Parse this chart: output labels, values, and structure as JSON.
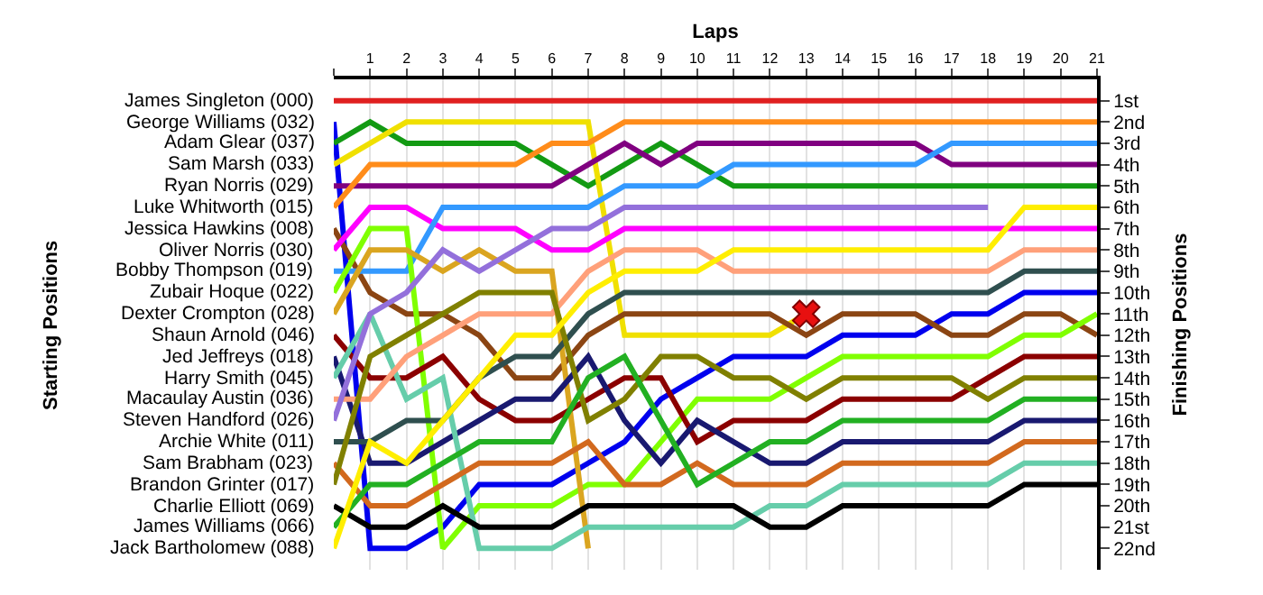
{
  "chart_data": {
    "type": "line",
    "xlabel": "Laps",
    "annotations": [
      "Starting Positions"
    ],
    "y2label": "Finishing Positions",
    "x": [
      0,
      1,
      2,
      3,
      4,
      5,
      6,
      7,
      8,
      9,
      10,
      11,
      12,
      13,
      14,
      15,
      16,
      17,
      18,
      19,
      20,
      21
    ],
    "xlim": [
      0,
      21
    ],
    "xticks": [
      {
        "value": 0,
        "label": null
      },
      1,
      2,
      3,
      4,
      5,
      6,
      7,
      8,
      9,
      10,
      11,
      12,
      13,
      14,
      15,
      16,
      17,
      18,
      19,
      20,
      21
    ],
    "y2lim": [
      23,
      0
    ],
    "y2ticks": [
      {
        "value": 1,
        "label": "1st"
      },
      {
        "value": 2,
        "label": "2nd"
      },
      {
        "value": 3,
        "label": "3rd"
      },
      {
        "value": 4,
        "label": "4th"
      },
      {
        "value": 5,
        "label": "5th"
      },
      {
        "value": 6,
        "label": "6th"
      },
      {
        "value": 7,
        "label": "7th"
      },
      {
        "value": 8,
        "label": "8th"
      },
      {
        "value": 9,
        "label": "9th"
      },
      {
        "value": 10,
        "label": "10th"
      },
      {
        "value": 11,
        "label": "11th"
      },
      {
        "value": 12,
        "label": "12th"
      },
      {
        "value": 13,
        "label": "13th"
      },
      {
        "value": 14,
        "label": "14th"
      },
      {
        "value": 15,
        "label": "15th"
      },
      {
        "value": 16,
        "label": "16th"
      },
      {
        "value": 17,
        "label": "17th"
      },
      {
        "value": 18,
        "label": "18th"
      },
      {
        "value": 19,
        "label": "19th"
      },
      {
        "value": 20,
        "label": "20th"
      },
      {
        "value": 21,
        "label": "21st"
      },
      {
        "value": 22,
        "label": "22nd"
      }
    ],
    "grid": true,
    "legend": false,
    "marker": "none",
    "line_style": "solid",
    "series": [
      {
        "name": "James Singleton (000)",
        "axis": "y2",
        "color": "#e02020",
        "values": [
          1,
          1,
          1,
          1,
          1,
          1,
          1,
          1,
          1,
          1,
          1,
          1,
          1,
          1,
          1,
          1,
          1,
          1,
          1,
          1,
          1,
          1
        ]
      },
      {
        "name": "George Williams (032)",
        "axis": "y2",
        "color": "#0000ee",
        "values": [
          2,
          22,
          22,
          21,
          19,
          19,
          19,
          18,
          17,
          15,
          14,
          13,
          13,
          13,
          12,
          12,
          12,
          11,
          11,
          10,
          10,
          10
        ]
      },
      {
        "name": "Adam Glear (037)",
        "axis": "y2",
        "color": "#139a13",
        "values": [
          3,
          2,
          3,
          3,
          3,
          3,
          4,
          5,
          4,
          3,
          4,
          5,
          5,
          5,
          5,
          5,
          5,
          5,
          5,
          5,
          5,
          5
        ]
      },
      {
        "name": "Sam Marsh (033)",
        "axis": "y2",
        "color": "#f0e000",
        "values": [
          4,
          3,
          2,
          2,
          2,
          2,
          2,
          2,
          12,
          12,
          12,
          12,
          12,
          11,
          null,
          null,
          null,
          null,
          null,
          null,
          null,
          null
        ]
      },
      {
        "name": "Ryan Norris (029)",
        "axis": "y2",
        "color": "#800080",
        "values": [
          5,
          5,
          5,
          5,
          5,
          5,
          5,
          4,
          3,
          4,
          3,
          3,
          3,
          3,
          3,
          3,
          3,
          4,
          4,
          4,
          4,
          4
        ]
      },
      {
        "name": "Luke Whitworth (015)",
        "axis": "y2",
        "color": "#ff8c1a",
        "values": [
          6,
          4,
          4,
          4,
          4,
          4,
          3,
          3,
          2,
          2,
          2,
          2,
          2,
          2,
          2,
          2,
          2,
          2,
          2,
          2,
          2,
          2
        ]
      },
      {
        "name": "Jessica Hawkins (008)",
        "axis": "y2",
        "color": "#8b4513",
        "values": [
          7,
          10,
          11,
          11,
          12,
          14,
          14,
          12,
          11,
          11,
          11,
          11,
          11,
          12,
          11,
          11,
          11,
          12,
          12,
          11,
          11,
          12
        ]
      },
      {
        "name": "Oliver Norris (030)",
        "axis": "y2",
        "color": "#ff00ff",
        "values": [
          8,
          6,
          6,
          7,
          7,
          7,
          8,
          8,
          7,
          7,
          7,
          7,
          7,
          7,
          7,
          7,
          7,
          7,
          7,
          7,
          7,
          7
        ]
      },
      {
        "name": "Bobby Thompson (019)",
        "axis": "y2",
        "color": "#3399ff",
        "values": [
          9,
          9,
          9,
          6,
          6,
          6,
          6,
          6,
          5,
          5,
          5,
          4,
          4,
          4,
          4,
          4,
          4,
          3,
          3,
          3,
          3,
          3
        ]
      },
      {
        "name": "Zubair Hoque (022)",
        "axis": "y2",
        "color": "#80ff00",
        "values": [
          10,
          7,
          7,
          22,
          20,
          20,
          20,
          19,
          19,
          17,
          15,
          15,
          15,
          14,
          13,
          13,
          13,
          13,
          13,
          12,
          12,
          11
        ]
      },
      {
        "name": "Dexter Crompton (028)",
        "axis": "y2",
        "color": "#daa520",
        "values": [
          11,
          8,
          8,
          9,
          8,
          9,
          9,
          22,
          null,
          null,
          null,
          null,
          null,
          null,
          null,
          null,
          null,
          null,
          null,
          null,
          null,
          null
        ]
      },
      {
        "name": "Shaun Arnold (046)",
        "axis": "y2",
        "color": "#8b0000",
        "values": [
          12,
          14,
          14,
          13,
          15,
          16,
          16,
          15,
          14,
          14,
          17,
          16,
          16,
          16,
          15,
          15,
          15,
          15,
          14,
          13,
          13,
          13
        ]
      },
      {
        "name": "Jed Jeffreys (018)",
        "axis": "y2",
        "color": "#191970",
        "values": [
          13,
          18,
          18,
          17,
          16,
          15,
          15,
          13,
          16,
          18,
          16,
          17,
          18,
          18,
          17,
          17,
          17,
          17,
          17,
          16,
          16,
          16
        ]
      },
      {
        "name": "Harry Smith (045)",
        "axis": "y2",
        "color": "#66cdaa",
        "values": [
          14,
          11,
          15,
          14,
          22,
          22,
          22,
          21,
          21,
          21,
          21,
          21,
          20,
          20,
          19,
          19,
          19,
          19,
          19,
          18,
          18,
          18
        ]
      },
      {
        "name": "Macaulay Austin (036)",
        "axis": "y2",
        "color": "#ffa07a",
        "values": [
          15,
          15,
          13,
          12,
          11,
          11,
          11,
          9,
          8,
          8,
          8,
          9,
          9,
          9,
          9,
          9,
          9,
          9,
          9,
          8,
          8,
          8
        ]
      },
      {
        "name": "Steven Handford (026)",
        "axis": "y2",
        "color": "#9370db",
        "values": [
          16,
          11,
          10,
          8,
          9,
          8,
          7,
          7,
          6,
          6,
          6,
          6,
          6,
          6,
          6,
          6,
          6,
          6,
          6,
          null,
          null,
          null
        ]
      },
      {
        "name": "Archie White (011)",
        "axis": "y2",
        "color": "#2f4f4f",
        "values": [
          17,
          17,
          16,
          16,
          14,
          13,
          13,
          11,
          10,
          10,
          10,
          10,
          10,
          10,
          10,
          10,
          10,
          10,
          10,
          9,
          9,
          9
        ]
      },
      {
        "name": "Sam Brabham (023)",
        "axis": "y2",
        "color": "#d2691e",
        "values": [
          18,
          20,
          20,
          19,
          18,
          18,
          18,
          17,
          19,
          19,
          18,
          19,
          19,
          19,
          18,
          18,
          18,
          18,
          18,
          17,
          17,
          17
        ]
      },
      {
        "name": "Brandon Grinter (017)",
        "axis": "y2",
        "color": "#808000",
        "values": [
          19,
          13,
          12,
          11,
          10,
          10,
          10,
          16,
          15,
          13,
          13,
          14,
          14,
          15,
          14,
          14,
          14,
          14,
          15,
          14,
          14,
          14
        ]
      },
      {
        "name": "Charlie Elliott (069)",
        "axis": "y2",
        "color": "#000000",
        "values": [
          20,
          21,
          21,
          20,
          21,
          21,
          21,
          20,
          20,
          20,
          20,
          20,
          21,
          21,
          20,
          20,
          20,
          20,
          20,
          19,
          19,
          19
        ]
      },
      {
        "name": "James Williams (066)",
        "axis": "y2",
        "color": "#22b022",
        "values": [
          21,
          19,
          19,
          18,
          17,
          17,
          17,
          14,
          13,
          16,
          19,
          18,
          17,
          17,
          16,
          16,
          16,
          16,
          16,
          15,
          15,
          15
        ]
      },
      {
        "name": "Jack Bartholomew (088)",
        "axis": "y2",
        "color": "#ffee00",
        "values": [
          22,
          17,
          18,
          16,
          14,
          12,
          12,
          10,
          9,
          9,
          9,
          8,
          8,
          8,
          8,
          8,
          8,
          8,
          8,
          6,
          6,
          6
        ]
      },
      {
        "type": "scatter",
        "axis": "y2",
        "color": "#e81010",
        "marker": "cross",
        "x": [
          13
        ],
        "values": [
          11
        ]
      }
    ]
  }
}
